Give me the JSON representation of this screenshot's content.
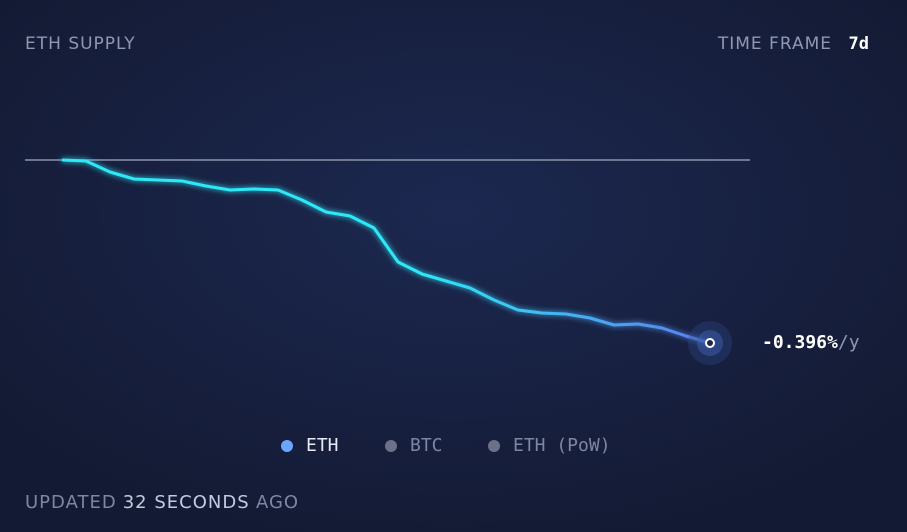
{
  "header": {
    "title": "ETH SUPPLY",
    "time_frame_label": "TIME FRAME",
    "time_frame_value": "7d"
  },
  "chart_data": {
    "type": "line",
    "series": [
      {
        "name": "ETH",
        "color": "#2ee8f7",
        "color_end": "#5b7ef0",
        "values": [
          0,
          -1,
          -12,
          -19,
          -20,
          -21,
          -26,
          -30,
          -29,
          -30,
          -40,
          -52,
          -56,
          -68,
          -102,
          -114,
          -121,
          -128,
          -140,
          -150,
          -153,
          -154,
          -158,
          -165,
          -164,
          -168,
          -176,
          -183
        ]
      }
    ],
    "ylim": [
      -200,
      20
    ],
    "reference_line": 0,
    "end_label": {
      "value": "-0.396%",
      "unit": "/y"
    }
  },
  "legend": [
    {
      "name": "ETH",
      "color": "#6aa6ff",
      "active": true
    },
    {
      "name": "BTC",
      "color": "#6b7288",
      "active": false
    },
    {
      "name": "ETH (PoW)",
      "color": "#6b7288",
      "active": false
    }
  ],
  "footer": {
    "prefix": "UPDATED",
    "amount": "32 SECONDS",
    "suffix": "AGO"
  }
}
